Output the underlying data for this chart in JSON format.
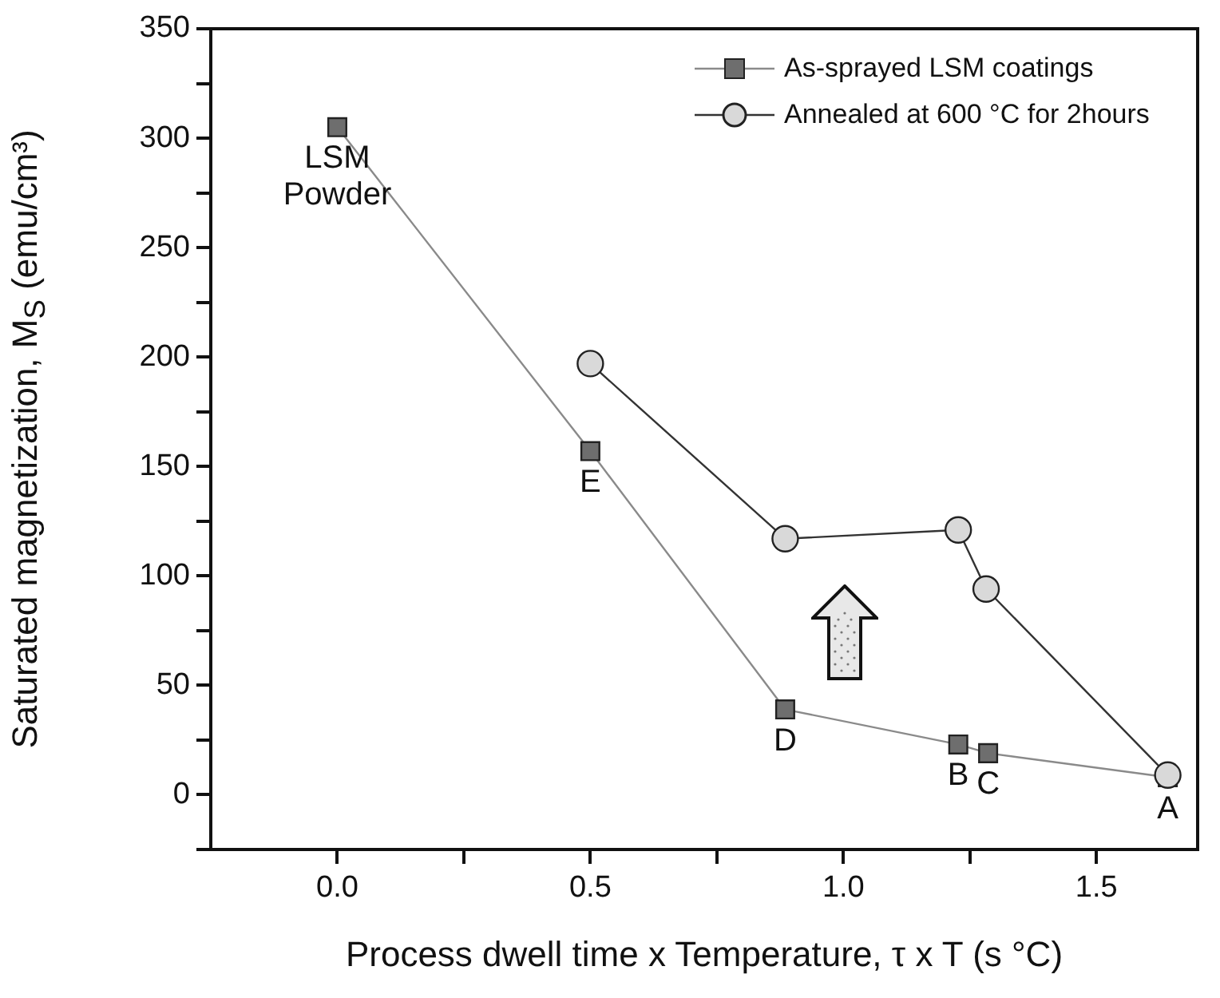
{
  "chart_data": {
    "type": "line",
    "xlabel": "Process dwell  time x Temperature, τ x T (s °C)",
    "ylabel": "Saturated magnetization,  M$_{S}$ (emu/cm³)",
    "xlim": [
      -0.25,
      1.7
    ],
    "xticks": [
      {
        "value": 0,
        "label": "0.0"
      },
      {
        "value": 0.25,
        "label": null
      },
      {
        "value": 0.5,
        "label": "0.5"
      },
      {
        "value": 0.75,
        "label": null
      },
      {
        "value": 1,
        "label": "1.0"
      },
      {
        "value": 1.25,
        "label": null
      },
      {
        "value": 1.5,
        "label": "1.5"
      }
    ],
    "ylim": [
      -25,
      350
    ],
    "yticks": [
      {
        "value": -25,
        "label": null
      },
      0,
      {
        "value": 25,
        "label": null
      },
      50,
      {
        "value": 75,
        "label": null
      },
      100,
      {
        "value": 125,
        "label": null
      },
      150,
      {
        "value": 175,
        "label": null
      },
      200,
      {
        "value": 225,
        "label": null
      },
      250,
      {
        "value": 275,
        "label": null
      },
      300,
      {
        "value": 325,
        "label": null
      },
      350
    ],
    "grid": false,
    "legend": "top right",
    "series": [
      {
        "name": "As-sprayed LSM coatings",
        "color": "#6e6e6e",
        "marker": "square",
        "x": [
          0,
          0.5,
          0.885,
          1.227,
          1.286,
          1.641
        ],
        "values": [
          305,
          157,
          39,
          23,
          19,
          8
        ]
      },
      {
        "name": "Annealed at 600 °C for 2hours",
        "color": "#d9d9d9",
        "marker": "circle",
        "x": [
          0.5,
          0.885,
          1.227,
          1.282,
          1.641
        ],
        "values": [
          197,
          117,
          121,
          94,
          9
        ]
      }
    ],
    "annotations": [
      {
        "text": "LSM Powder",
        "x": 0,
        "y": 305
      },
      {
        "text": "E",
        "x": 0.5,
        "y": 157
      },
      {
        "text": "D",
        "x": 0.885,
        "y": 39
      },
      {
        "text": "B",
        "x": 1.227,
        "y": 23
      },
      {
        "text": "C",
        "x": 1.286,
        "y": 19
      },
      {
        "text": "A",
        "x": 1.641,
        "y": 8
      }
    ]
  }
}
